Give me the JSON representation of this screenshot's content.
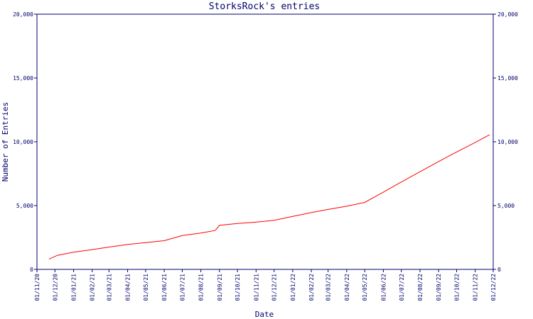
{
  "chart_data": {
    "type": "line",
    "title": "StorksRock's entries",
    "xlabel": "Date",
    "ylabel": "Number of Entries",
    "ylim": [
      0,
      20000
    ],
    "yticks": [
      0,
      5000,
      10000,
      15000,
      20000
    ],
    "ytick_labels": [
      "0",
      "5,000",
      "10,000",
      "15,000",
      "20,000"
    ],
    "x_categories": [
      "01/11/20",
      "01/12/20",
      "01/01/21",
      "01/02/21",
      "01/03/21",
      "01/04/21",
      "01/05/21",
      "01/06/21",
      "01/07/21",
      "01/08/21",
      "01/09/21",
      "01/10/21",
      "01/11/21",
      "01/12/21",
      "01/01/22",
      "01/02/22",
      "01/03/22",
      "01/04/22",
      "01/05/22",
      "01/06/22",
      "01/07/22",
      "01/08/22",
      "01/09/22",
      "01/10/22",
      "01/11/22",
      "01/12/22"
    ],
    "grid": false,
    "line_color": "#ff0000",
    "axis_color": "#00006e",
    "series": [
      {
        "points": [
          {
            "x": "01/11/20",
            "y": null
          },
          {
            "x": "21/11/20",
            "y": 800
          },
          {
            "x": "05/12/20",
            "y": 1100
          },
          {
            "x": "01/01/21",
            "y": 1350
          },
          {
            "x": "01/02/21",
            "y": 1550
          },
          {
            "x": "01/03/21",
            "y": 1750
          },
          {
            "x": "01/04/21",
            "y": 1950
          },
          {
            "x": "01/05/21",
            "y": 2100
          },
          {
            "x": "01/06/21",
            "y": 2250
          },
          {
            "x": "01/07/21",
            "y": 2650
          },
          {
            "x": "01/08/21",
            "y": 2850
          },
          {
            "x": "25/08/21",
            "y": 3050
          },
          {
            "x": "01/09/21",
            "y": 3450
          },
          {
            "x": "01/10/21",
            "y": 3600
          },
          {
            "x": "01/11/21",
            "y": 3700
          },
          {
            "x": "01/12/21",
            "y": 3850
          },
          {
            "x": "01/01/22",
            "y": 4150
          },
          {
            "x": "01/02/22",
            "y": 4450
          },
          {
            "x": "01/03/22",
            "y": 4700
          },
          {
            "x": "01/04/22",
            "y": 4950
          },
          {
            "x": "01/05/22",
            "y": 5250
          },
          {
            "x": "01/06/22",
            "y": 6050
          },
          {
            "x": "01/07/22",
            "y": 6850
          },
          {
            "x": "01/08/22",
            "y": 7650
          },
          {
            "x": "01/09/22",
            "y": 8450
          },
          {
            "x": "01/10/22",
            "y": 9200
          },
          {
            "x": "01/11/22",
            "y": 9950
          },
          {
            "x": "25/11/22",
            "y": 10550
          }
        ]
      }
    ]
  }
}
